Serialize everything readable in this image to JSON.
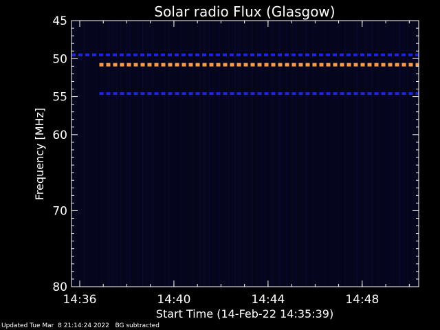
{
  "chart_data": {
    "type": "heatmap",
    "title": "Solar radio Flux (Glasgow)",
    "ylabel": "Frequency [MHz]",
    "xlabel": "Start Time (14-Feb-22 14:35:39)",
    "y_ticks": [
      45,
      50,
      55,
      60,
      70,
      80
    ],
    "y_range": [
      45,
      80
    ],
    "x_ticks": [
      "14:36",
      "14:40",
      "14:44",
      "14:48"
    ],
    "x_range_minutes_after_1435": [
      0.65,
      15.4
    ],
    "colors": {
      "background": "#000000",
      "plot_bg": "#05051c",
      "orange_band": "#ff9a40",
      "blue_band": "#1c24e0",
      "axes": "#ffffff"
    },
    "bands": [
      {
        "frequency_mhz": 49.5,
        "color": "blue",
        "start": "14:35:39",
        "style": "dashed"
      },
      {
        "frequency_mhz": 50.8,
        "color": "orange",
        "start": "14:36:50",
        "style": "dashed"
      },
      {
        "frequency_mhz": 54.6,
        "color": "blue",
        "start": "14:36:50",
        "style": "dashed"
      }
    ]
  },
  "footer": {
    "updated": "Updated Tue Mar  8 21:14:24 2022",
    "bg_note": "BG subtracted"
  }
}
